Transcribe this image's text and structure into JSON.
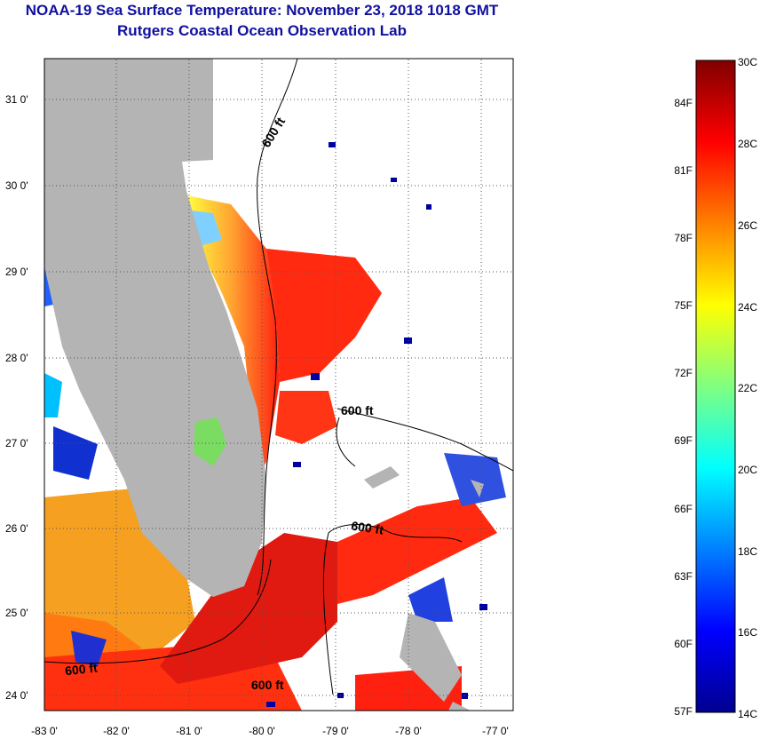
{
  "header": {
    "title": "NOAA-19 Sea Surface Temperature:  November 23, 2018 1018 GMT",
    "subtitle": "Rutgers Coastal Ocean Observation Lab"
  },
  "map": {
    "lon_labels": [
      "-83 0'",
      "-82 0'",
      "-81 0'",
      "-80 0'",
      "-79 0'",
      "-78 0'",
      "-77 0'"
    ],
    "lat_labels": [
      "31 0'",
      "30 0'",
      "29 0'",
      "28 0'",
      "27 0'",
      "26 0'",
      "25 0'",
      "24 0'"
    ],
    "contour_labels": [
      "600 ft",
      "600 ft",
      "600 ft",
      "600 ft",
      "600 ft"
    ]
  },
  "colorbar": {
    "celsius_labels": [
      "30C",
      "28C",
      "26C",
      "24C",
      "22C",
      "20C",
      "18C",
      "16C",
      "14C"
    ],
    "fahrenheit_labels": [
      "84F",
      "81F",
      "78F",
      "75F",
      "72F",
      "69F",
      "66F",
      "63F",
      "60F",
      "57F"
    ],
    "colors": [
      "#00008f",
      "#0000ff",
      "#0080ff",
      "#00ffff",
      "#80ff80",
      "#ffff00",
      "#ff8000",
      "#ff0000",
      "#800000"
    ]
  }
}
